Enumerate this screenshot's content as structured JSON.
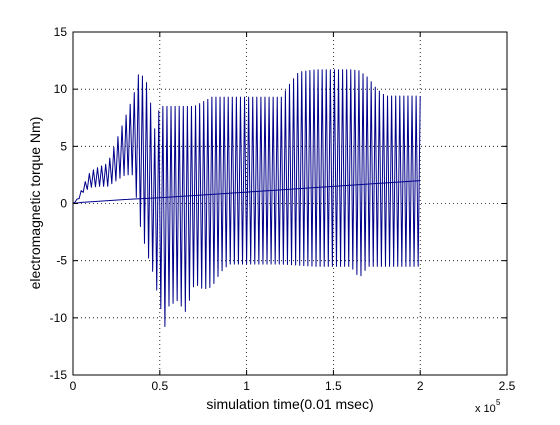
{
  "chart_data": {
    "type": "line",
    "title": "",
    "xlabel": "simulation time(0.01 msec)",
    "ylabel": "electromagnetic torque Nm)",
    "x_exponent_label": "x 10",
    "x_exponent_power": "5",
    "xlim": [
      0,
      2.5
    ],
    "ylim": [
      -15,
      15
    ],
    "x_ticks": [
      0,
      0.5,
      1,
      1.5,
      2,
      2.5
    ],
    "x_tick_labels": [
      "0",
      "0.5",
      "1",
      "1.5",
      "2",
      "2.5"
    ],
    "y_ticks": [
      -15,
      -10,
      -5,
      0,
      5,
      10,
      15
    ],
    "y_tick_labels": [
      "-15",
      "-10",
      "-5",
      "0",
      "5",
      "10",
      "15"
    ],
    "grid": true,
    "grid_style": "dotted",
    "line_color": "#00008b",
    "series": [
      {
        "style": "oscillation",
        "x_start": 0,
        "x_end": 2,
        "cycles": 85,
        "upper_envelope": {
          "x": [
            0,
            0.03,
            0.06,
            0.1,
            0.15,
            0.2,
            0.25,
            0.3,
            0.35,
            0.38,
            0.42,
            0.44,
            0.47,
            0.5,
            0.55,
            0.6,
            0.7,
            0.8,
            0.9,
            1.0,
            1.1,
            1.2,
            1.25,
            1.3,
            1.35,
            1.4,
            1.5,
            1.6,
            1.65,
            1.7,
            1.75,
            1.8,
            1.9,
            2.0
          ],
          "y": [
            0,
            0.5,
            1.6,
            2.8,
            3.2,
            3.5,
            5.5,
            7.5,
            9.5,
            11.5,
            10.8,
            9.5,
            6.5,
            8.5,
            8.5,
            8.5,
            8.5,
            9.3,
            9.3,
            9.3,
            9.3,
            9.3,
            10.5,
            11.5,
            11.6,
            11.7,
            11.7,
            11.7,
            11.6,
            11,
            10,
            9.4,
            9.4,
            9.4
          ]
        },
        "lower_envelope": {
          "x": [
            0,
            0.03,
            0.06,
            0.1,
            0.15,
            0.2,
            0.25,
            0.3,
            0.35,
            0.38,
            0.42,
            0.46,
            0.5,
            0.53,
            0.55,
            0.6,
            0.65,
            0.7,
            0.75,
            0.8,
            0.85,
            0.9,
            1.0,
            1.1,
            1.2,
            1.3,
            1.4,
            1.5,
            1.6,
            1.65,
            1.7,
            1.8,
            1.9,
            2.0
          ],
          "y": [
            0,
            0.3,
            1.0,
            1.4,
            1.5,
            1.5,
            2.0,
            2.5,
            2.5,
            -1.5,
            -4.0,
            -6.0,
            -8.8,
            -10.8,
            -9.0,
            -8.5,
            -9.5,
            -7.0,
            -7.5,
            -7.3,
            -6.0,
            -5.3,
            -5.3,
            -5.3,
            -5.3,
            -5.4,
            -5.5,
            -5.5,
            -5.5,
            -6.5,
            -5.5,
            -5.5,
            -5.5,
            -5.5
          ]
        }
      },
      {
        "style": "line",
        "x": [
          0,
          0.05,
          0.15,
          0.3,
          0.5,
          1.0,
          1.5,
          2.0
        ],
        "y": [
          0,
          0.1,
          0.2,
          0.35,
          0.5,
          1.0,
          1.5,
          2.0
        ]
      }
    ]
  }
}
